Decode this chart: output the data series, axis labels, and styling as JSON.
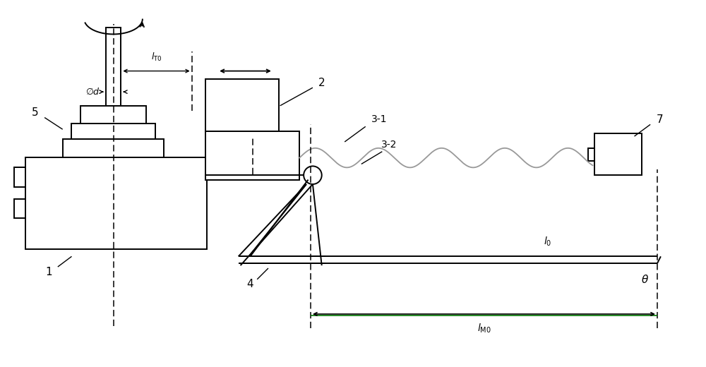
{
  "bg_color": "#ffffff",
  "line_color": "#000000",
  "gray_color": "#999999",
  "green_color": "#007700",
  "fig_width": 10.0,
  "fig_height": 5.2,
  "lw_main": 1.4,
  "lw_dim": 1.0,
  "lw_dash": 1.1
}
